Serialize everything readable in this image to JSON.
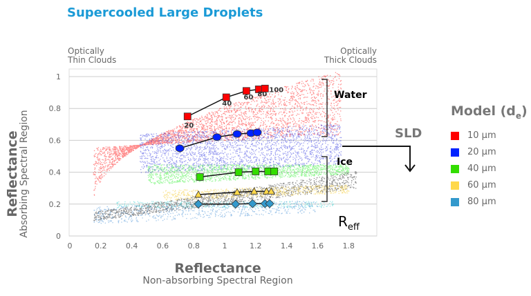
{
  "title": "Supercooled Large Droplets",
  "annotations": {
    "thin": [
      "Optically",
      "Thin Clouds"
    ],
    "thick": [
      "Optically",
      "Thick Clouds"
    ],
    "water": "Water",
    "ice": "Ice",
    "sld": "SLD",
    "reff_main": "R",
    "reff_sub": "eff"
  },
  "legend": {
    "title_main": "Model (d",
    "title_sub": "e",
    "title_close": ")",
    "items": [
      {
        "label": "10 µm",
        "color": "#ff0000"
      },
      {
        "label": "20 µm",
        "color": "#0022ff"
      },
      {
        "label": "40 µm",
        "color": "#33dd00"
      },
      {
        "label": "60 µm",
        "color": "#ffd84a"
      },
      {
        "label": "80 µm",
        "color": "#3399cc"
      }
    ]
  },
  "chart_data": {
    "type": "scatter",
    "title": "Supercooled Large Droplets",
    "xlabel": "Reflectance",
    "xlabel_sub": "Non-absorbing Spectral Region",
    "ylabel": "Reflectance",
    "ylabel_sub": "Absorbing Spectral Region",
    "xlim": [
      0,
      1.95
    ],
    "ylim": [
      0,
      1.05
    ],
    "xticks": [
      "0",
      "0.2",
      "0.4",
      "0.6",
      "0.8",
      "1",
      "1.2",
      "1.4",
      "1.6",
      "1.8"
    ],
    "yticks": [
      "0",
      "0.2",
      "0.4",
      "0.6",
      "0.8",
      "1"
    ],
    "grid": "horizontal",
    "legend_position": "right",
    "point_labels": [
      "20",
      "40",
      "60",
      "80",
      "100"
    ],
    "series": [
      {
        "name": "10 µm",
        "color": "#ff0000",
        "marker": "square",
        "x": [
          0.76,
          1.01,
          1.14,
          1.22,
          1.26
        ],
        "y": [
          0.75,
          0.87,
          0.91,
          0.92,
          0.925
        ]
      },
      {
        "name": "20 µm",
        "color": "#0022ff",
        "marker": "circle",
        "x": [
          0.71,
          0.95,
          1.08,
          1.17,
          1.21
        ],
        "y": [
          0.55,
          0.62,
          0.64,
          0.645,
          0.65
        ]
      },
      {
        "name": "40 µm",
        "color": "#33dd00",
        "marker": "square",
        "x": [
          0.84,
          1.09,
          1.2,
          1.28,
          1.32
        ],
        "y": [
          0.37,
          0.4,
          0.405,
          0.405,
          0.405
        ]
      },
      {
        "name": "60 µm",
        "color": "#ffd84a",
        "marker": "triangle",
        "x": [
          0.83,
          1.08,
          1.19,
          1.27,
          1.3
        ],
        "y": [
          0.26,
          0.275,
          0.28,
          0.28,
          0.28
        ]
      },
      {
        "name": "80 µm",
        "color": "#3399cc",
        "marker": "diamond",
        "x": [
          0.83,
          1.07,
          1.18,
          1.26,
          1.29
        ],
        "y": [
          0.2,
          0.2,
          0.203,
          0.203,
          0.203
        ]
      }
    ]
  }
}
